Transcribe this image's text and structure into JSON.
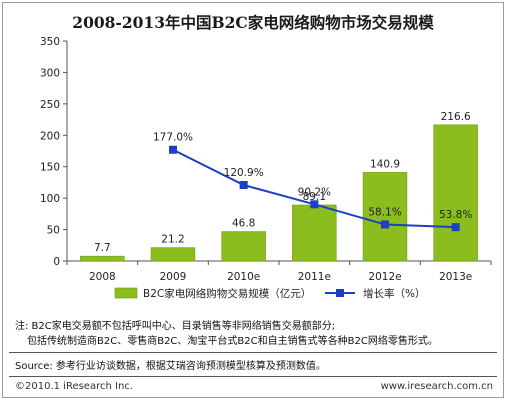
{
  "chart_data": {
    "type": "bar",
    "title": "2008-2013年中国B2C家电网络购物市场交易规模",
    "categories": [
      "2008",
      "2009",
      "2010e",
      "2011e",
      "2012e",
      "2013e"
    ],
    "series": [
      {
        "name": "B2C家电网络购物交易规模（亿元）",
        "type": "bar",
        "axis": "left",
        "color": "#8cbd1e",
        "values": [
          7.7,
          21.2,
          46.8,
          89.1,
          140.9,
          216.6
        ],
        "labels": [
          "7.7",
          "21.2",
          "46.8",
          "89.1",
          "140.9",
          "216.6"
        ]
      },
      {
        "name": "增长率（%）",
        "type": "line",
        "axis": "right",
        "color": "#1c3fc4",
        "values": [
          null,
          177.0,
          120.9,
          90.2,
          58.1,
          53.8
        ],
        "labels": [
          "",
          "177.0%",
          "120.9%",
          "90.2%",
          "58.1%",
          "53.8%"
        ]
      }
    ],
    "yticks": [
      "0",
      "50",
      "100",
      "150",
      "200",
      "250",
      "300",
      "350"
    ],
    "ylim": [
      0,
      350
    ],
    "y2lim": [
      0,
      350
    ],
    "legend_position": "bottom",
    "grid": false
  },
  "notes": {
    "line1": "注:  B2C家电交易额不包括呼叫中心、目录销售等非网络销售交易额部分;",
    "line2": "包括传统制造商B2C、零售商B2C、淘宝平台式B2C和自主销售式等各种B2C网络零售形式。"
  },
  "source": "Source: 参考行业访谈数据，根据艾瑞咨询预测模型核算及预测数值。",
  "footer": {
    "copyright": "©2010.1 iResearch Inc.",
    "website": "www.iresearch.com.cn"
  }
}
